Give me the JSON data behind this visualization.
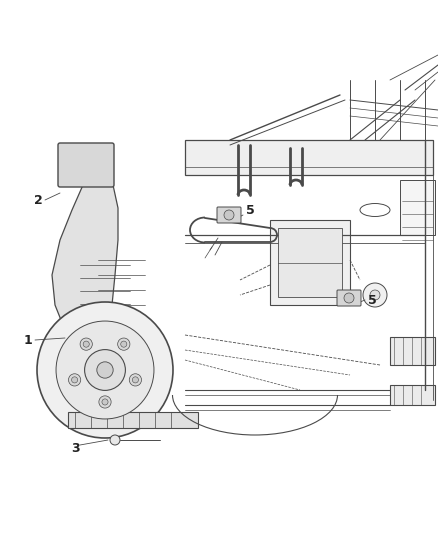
{
  "bg_color": "#ffffff",
  "lc": "#4a4a4a",
  "lc_light": "#888888",
  "figsize": [
    4.38,
    5.33
  ],
  "dpi": 100,
  "xlim": [
    0,
    438
  ],
  "ylim": [
    0,
    533
  ]
}
